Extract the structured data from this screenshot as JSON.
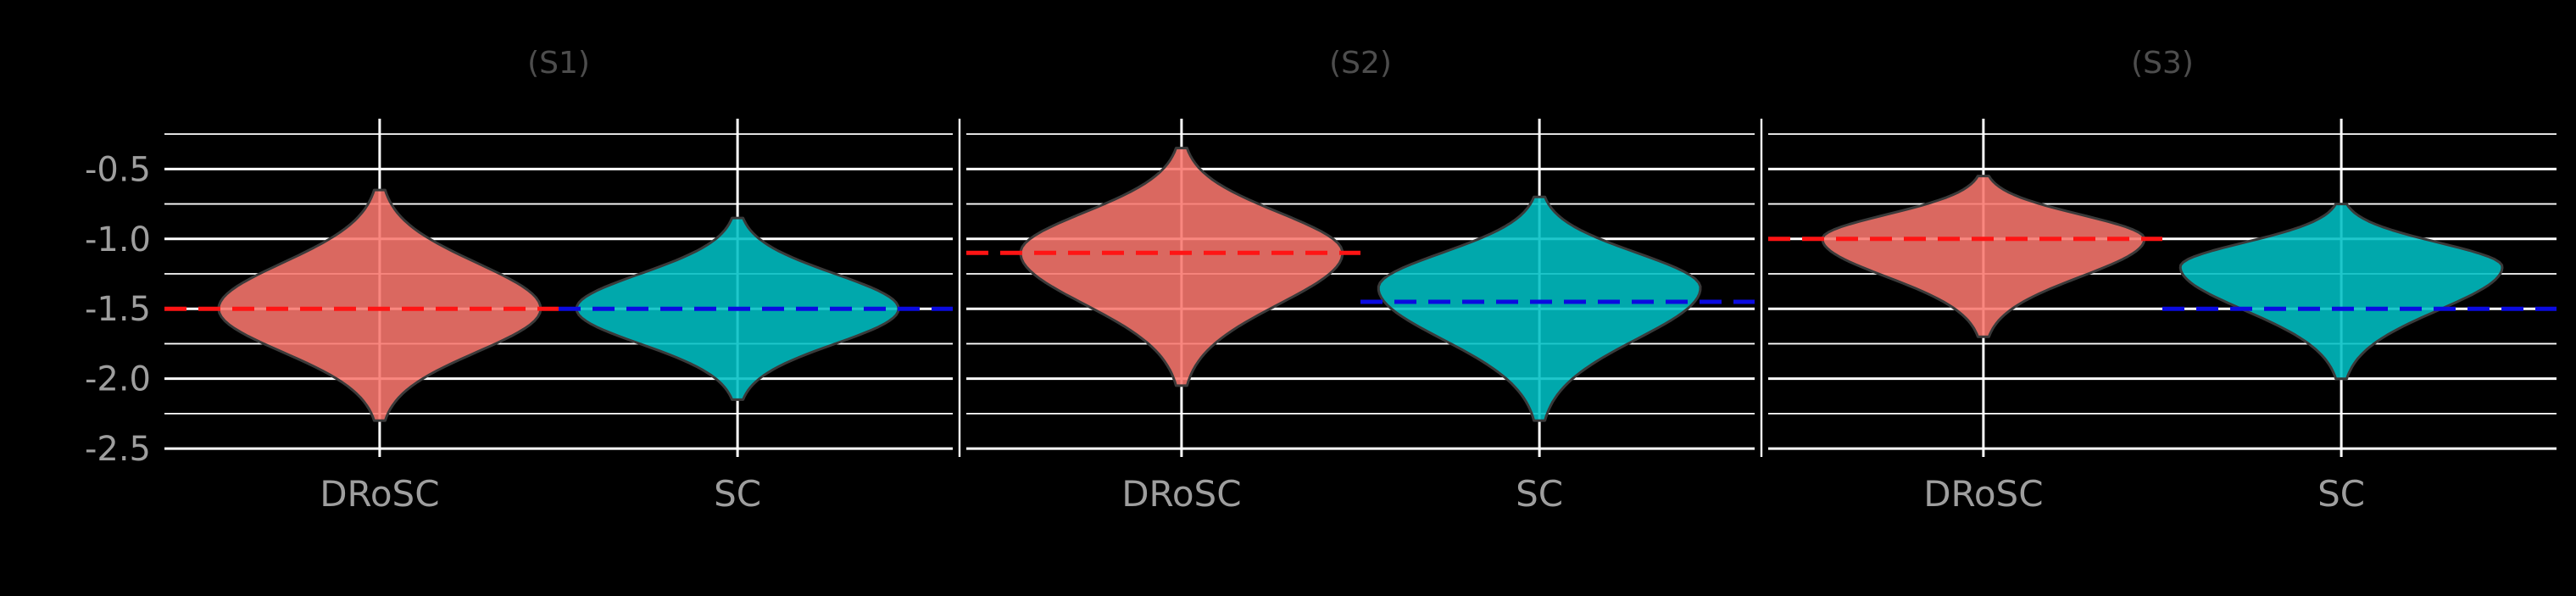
{
  "figure": {
    "background": "#000000",
    "grid_color": "#FFFFFF",
    "axis_text_color": "#9E9E9E",
    "facet_title_color": "#4D4D4D",
    "violin_outline_color": "#3A3A3A"
  },
  "chart_data": {
    "type": "violin",
    "facets": [
      {
        "title": "(S1)",
        "groups": [
          {
            "category": "DRoSC",
            "fill": "#F8766D",
            "dashed_line_color": "#FF1414",
            "dashed_line_y": -1.5,
            "y_min": -2.3,
            "y_max": -0.65,
            "y_peak": -1.5
          },
          {
            "category": "SC",
            "fill": "#00BFC4",
            "dashed_line_color": "#0B0BE0",
            "dashed_line_y": -1.5,
            "y_min": -2.15,
            "y_max": -0.85,
            "y_peak": -1.5
          }
        ]
      },
      {
        "title": "(S2)",
        "groups": [
          {
            "category": "DRoSC",
            "fill": "#F8766D",
            "dashed_line_color": "#FF1414",
            "dashed_line_y": -1.1,
            "y_min": -2.05,
            "y_max": -0.35,
            "y_peak": -1.1
          },
          {
            "category": "SC",
            "fill": "#00BFC4",
            "dashed_line_color": "#0B0BE0",
            "dashed_line_y": -1.45,
            "y_min": -2.3,
            "y_max": -0.7,
            "y_peak": -1.35
          }
        ]
      },
      {
        "title": "(S3)",
        "groups": [
          {
            "category": "DRoSC",
            "fill": "#F8766D",
            "dashed_line_color": "#FF1414",
            "dashed_line_y": -1.0,
            "y_min": -1.7,
            "y_max": -0.55,
            "y_peak": -1.0
          },
          {
            "category": "SC",
            "fill": "#00BFC4",
            "dashed_line_color": "#0B0BE0",
            "dashed_line_y": -1.5,
            "y_min": -2.0,
            "y_max": -0.75,
            "y_peak": -1.2
          }
        ]
      }
    ],
    "x_categories": [
      "DRoSC",
      "SC"
    ],
    "y_ticks": [
      -0.5,
      -1.0,
      -1.5,
      -2.0,
      -2.5
    ],
    "y_tick_labels": [
      "-0.5",
      "-1.0",
      "-1.5",
      "-2.0",
      "-2.5"
    ],
    "y_minor_ticks": [
      -0.25,
      -0.75,
      -1.25,
      -1.75,
      -2.25
    ],
    "ylim": [
      -2.56,
      -0.14
    ],
    "grid": true,
    "legend": "none"
  }
}
